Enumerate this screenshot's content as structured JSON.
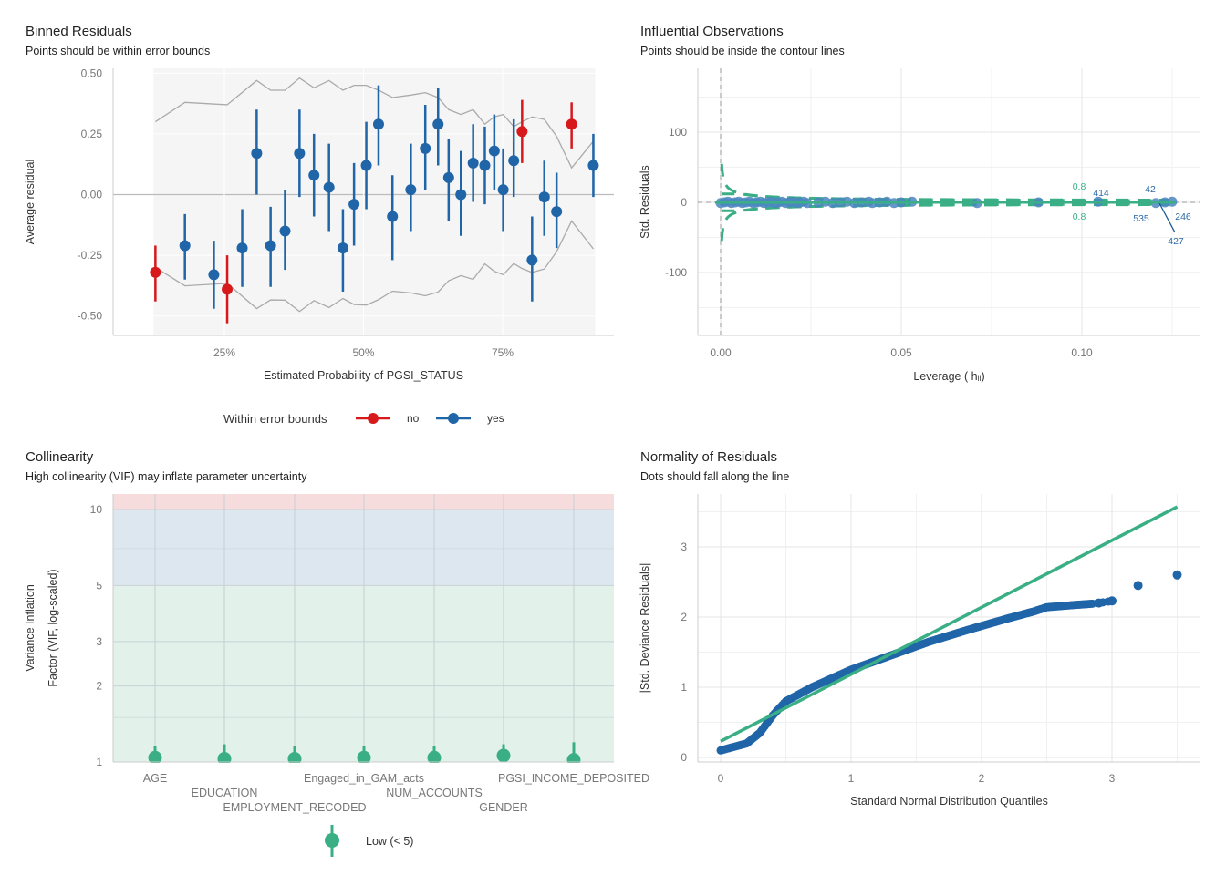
{
  "chart_data": [
    {
      "type": "scatter",
      "title": "Binned Residuals",
      "subtitle": "Points should be within error bounds",
      "xlabel": "Estimated Probability of PGSI_STATUS",
      "ylabel": "Average residual",
      "xticks": [
        "25%",
        "50%",
        "75%"
      ],
      "xtick_values": [
        25,
        50,
        75
      ],
      "yticks": [
        "0.50",
        "0.25",
        "0.00",
        "-0.25",
        "-0.50"
      ],
      "ytick_values": [
        0.5,
        0.25,
        0,
        -0.25,
        -0.5
      ],
      "xlim": [
        5,
        95
      ],
      "ylim": [
        -0.58,
        0.52
      ],
      "legend": {
        "title": "Within error bounds",
        "items": [
          {
            "label": "no",
            "color": "#d7191c"
          },
          {
            "label": "yes",
            "color": "#1f65a8"
          }
        ]
      },
      "points": [
        [
          12.6,
          -0.32,
          -0.44,
          -0.21,
          "no"
        ],
        [
          17.9,
          -0.21,
          -0.35,
          -0.08,
          "yes"
        ],
        [
          23.1,
          -0.33,
          -0.47,
          -0.19,
          "yes"
        ],
        [
          25.5,
          -0.39,
          -0.53,
          -0.25,
          "no"
        ],
        [
          28.2,
          -0.22,
          -0.38,
          -0.06,
          "yes"
        ],
        [
          30.8,
          0.17,
          0.0,
          0.35,
          "yes"
        ],
        [
          33.3,
          -0.21,
          -0.38,
          -0.05,
          "yes"
        ],
        [
          35.9,
          -0.15,
          -0.31,
          0.02,
          "yes"
        ],
        [
          38.5,
          0.17,
          -0.01,
          0.35,
          "yes"
        ],
        [
          41.1,
          0.08,
          -0.09,
          0.25,
          "yes"
        ],
        [
          43.8,
          0.03,
          -0.15,
          0.21,
          "yes"
        ],
        [
          46.3,
          -0.22,
          -0.4,
          -0.06,
          "yes"
        ],
        [
          48.3,
          -0.04,
          -0.21,
          0.13,
          "yes"
        ],
        [
          50.5,
          0.12,
          -0.06,
          0.3,
          "yes"
        ],
        [
          52.7,
          0.29,
          0.12,
          0.45,
          "yes"
        ],
        [
          55.2,
          -0.09,
          -0.27,
          0.08,
          "yes"
        ],
        [
          58.5,
          0.02,
          -0.15,
          0.21,
          "yes"
        ],
        [
          61.1,
          0.19,
          0.02,
          0.37,
          "yes"
        ],
        [
          63.4,
          0.29,
          0.12,
          0.44,
          "yes"
        ],
        [
          65.3,
          0.07,
          -0.11,
          0.23,
          "yes"
        ],
        [
          67.5,
          0.0,
          -0.17,
          0.18,
          "yes"
        ],
        [
          69.7,
          0.13,
          -0.03,
          0.29,
          "yes"
        ],
        [
          71.8,
          0.12,
          -0.04,
          0.28,
          "yes"
        ],
        [
          73.5,
          0.18,
          0.02,
          0.33,
          "yes"
        ],
        [
          75.1,
          0.02,
          -0.15,
          0.19,
          "yes"
        ],
        [
          77.0,
          0.14,
          -0.01,
          0.31,
          "yes"
        ],
        [
          78.5,
          0.26,
          0.13,
          0.39,
          "no"
        ],
        [
          80.3,
          -0.27,
          -0.44,
          -0.09,
          "yes"
        ],
        [
          82.5,
          -0.01,
          -0.17,
          0.14,
          "yes"
        ],
        [
          84.7,
          -0.07,
          -0.22,
          0.09,
          "yes"
        ],
        [
          87.4,
          0.29,
          0.19,
          0.38,
          "no"
        ],
        [
          91.3,
          0.12,
          -0.01,
          0.25,
          "yes"
        ]
      ],
      "bounds_x": [
        12.6,
        17.9,
        25.5,
        30.8,
        33.3,
        35.9,
        38.5,
        41.1,
        43.8,
        46.3,
        48.3,
        50.5,
        52.7,
        55.2,
        58.5,
        61.1,
        63.4,
        65.3,
        67.5,
        69.7,
        71.8,
        73.5,
        75.1,
        77.0,
        78.5,
        80.3,
        82.5,
        84.7,
        87.4,
        91.3
      ],
      "bounds_upper": [
        0.3,
        0.38,
        0.37,
        0.47,
        0.43,
        0.43,
        0.48,
        0.44,
        0.47,
        0.43,
        0.45,
        0.45,
        0.43,
        0.4,
        0.41,
        0.42,
        0.4,
        0.35,
        0.33,
        0.35,
        0.29,
        0.32,
        0.33,
        0.28,
        0.3,
        0.32,
        0.31,
        0.24,
        0.11,
        0.22
      ]
    },
    {
      "type": "scatter",
      "title": "Influential Observations",
      "subtitle": "Points should be inside the contour lines",
      "xlabel": "Leverage ( hᵢᵢ)",
      "ylabel": "Std. Residuals",
      "xticks": [
        "0.00",
        "0.05",
        "0.10"
      ],
      "xtick_values": [
        0,
        0.05,
        0.1
      ],
      "yticks": [
        "100",
        "0",
        "-100"
      ],
      "ytick_values": [
        100,
        0,
        -100
      ],
      "xlim": [
        -0.004,
        0.132
      ],
      "ylim": [
        -190,
        190
      ],
      "contour_labels": [
        "0.8",
        "0.8"
      ],
      "labeled_points": [
        {
          "label": "414",
          "x": 0.1045,
          "y": 1
        },
        {
          "label": "42",
          "x": 0.1205,
          "y": 0
        },
        {
          "label": "535",
          "x": 0.1205,
          "y": -2
        },
        {
          "label": "246",
          "x": 0.125,
          "y": 0
        },
        {
          "label": "427",
          "x": 0.1205,
          "y": -1
        }
      ],
      "points_x": [
        0.0,
        0.001,
        0.002,
        0.003,
        0.004,
        0.005,
        0.006,
        0.007,
        0.008,
        0.009,
        0.01,
        0.011,
        0.012,
        0.013,
        0.014,
        0.015,
        0.016,
        0.017,
        0.018,
        0.019,
        0.02,
        0.021,
        0.022,
        0.023,
        0.024,
        0.027,
        0.029,
        0.031,
        0.033,
        0.035,
        0.037,
        0.039,
        0.041,
        0.042,
        0.044,
        0.046,
        0.048,
        0.05,
        0.053,
        0.071,
        0.088,
        0.1045,
        0.1205,
        0.123,
        0.125
      ]
    },
    {
      "type": "scatter",
      "title": "Collinearity",
      "subtitle": "High collinearity (VIF) may inflate parameter uncertainty",
      "xlabel": "",
      "ylabel": "Variance Inflation\nFactor (VIF, log-scaled)",
      "ylabel_lines": [
        "Variance Inflation",
        "Factor (VIF, log-scaled)"
      ],
      "yticks": [
        "10",
        "5",
        "3",
        "2",
        "1"
      ],
      "ytick_values": [
        10,
        5,
        3,
        2,
        1
      ],
      "ylim": [
        1,
        11.5
      ],
      "yscale": "log",
      "categories": [
        "AGE",
        "EDUCATION",
        "EMPLOYMENT_RECODED",
        "Engaged_in_GAM_acts",
        "NUM_ACCOUNTS",
        "GENDER",
        "PGSI_INCOME_DEPOSITED"
      ],
      "values": [
        1.04,
        1.03,
        1.03,
        1.04,
        1.04,
        1.06,
        1.02
      ],
      "ci_high": [
        1.08,
        1.1,
        1.08,
        1.08,
        1.08,
        1.1,
        1.12
      ],
      "legend": {
        "items": [
          {
            "label": "Low (< 5)",
            "color": "#3aaf85"
          }
        ]
      },
      "zones": [
        {
          "name": "low",
          "to": 5,
          "color": "#e2f2ea"
        },
        {
          "name": "moderate",
          "to": 10,
          "color": "#dce7f0"
        },
        {
          "name": "high",
          "to": 11.5,
          "color": "#f7dcdd"
        }
      ]
    },
    {
      "type": "scatter",
      "title": "Normality of Residuals",
      "subtitle": "Dots should fall along the line",
      "xlabel": "Standard Normal Distribution Quantiles",
      "ylabel": "|Std. Deviance Residuals|",
      "xticks": [
        "0",
        "1",
        "2",
        "3"
      ],
      "xtick_values": [
        0,
        1,
        2,
        3
      ],
      "yticks": [
        "3",
        "2",
        "1",
        "0"
      ],
      "ytick_values": [
        3,
        2,
        1,
        0
      ],
      "xlim": [
        -0.1,
        3.7
      ],
      "ylim": [
        -0.07,
        3.72
      ],
      "reference_line": [
        [
          0,
          0.23
        ],
        [
          3.5,
          3.57
        ]
      ],
      "points": [
        [
          0,
          0.1
        ],
        [
          0.2,
          0.2
        ],
        [
          0.3,
          0.35
        ],
        [
          0.4,
          0.6
        ],
        [
          0.5,
          0.8
        ],
        [
          0.7,
          1.0
        ],
        [
          1.0,
          1.25
        ],
        [
          1.3,
          1.45
        ],
        [
          1.6,
          1.65
        ],
        [
          1.9,
          1.82
        ],
        [
          2.2,
          1.98
        ],
        [
          2.4,
          2.08
        ],
        [
          2.5,
          2.14
        ],
        [
          2.7,
          2.17
        ],
        [
          2.85,
          2.19
        ]
      ],
      "tail_points": [
        [
          2.9,
          2.2
        ],
        [
          3.0,
          2.23
        ],
        [
          3.2,
          2.45
        ],
        [
          3.5,
          2.6
        ]
      ]
    }
  ]
}
